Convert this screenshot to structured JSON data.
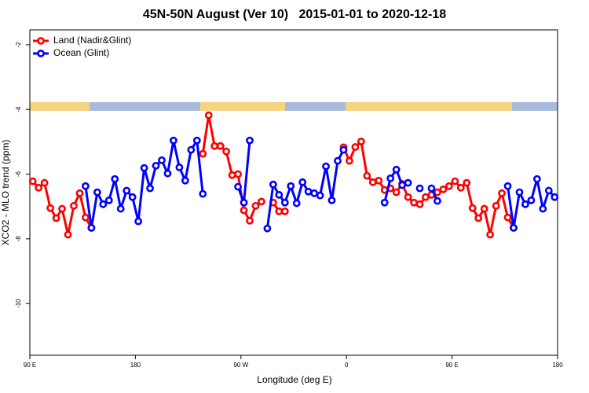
{
  "chart_data": {
    "type": "line",
    "title": "45N-50N August (Ver 10)   2015-01-01 to 2020-12-18",
    "x_label": "Longitude (deg E)",
    "y_label": "XCO2 - MLO trend (ppm)",
    "xlim": [
      90,
      540
    ],
    "ylim": [
      -11.6,
      -1.54
    ],
    "xticks": [
      {
        "value": 90,
        "label": "90 E"
      },
      180,
      {
        "value": 270,
        "label": "90 W"
      },
      {
        "value": 360,
        "label": "0"
      },
      {
        "value": 450,
        "label": "90 E"
      },
      {
        "value": 540,
        "label": "180"
      }
    ],
    "yticks": [
      -10,
      -8,
      -6,
      -4,
      -2
    ],
    "legend": "top-left",
    "x": [
      92.5,
      97.5,
      102.5,
      107.5,
      112.5,
      117.5,
      122.5,
      127.5,
      132.5,
      137.5,
      142.5,
      147.5,
      152.5,
      157.5,
      162.5,
      167.5,
      172.5,
      177.5,
      182.5,
      187.5,
      192.5,
      197.5,
      202.5,
      207.5,
      212.5,
      217.5,
      222.5,
      227.5,
      232.5,
      237.5,
      242.5,
      247.5,
      252.5,
      257.5,
      262.5,
      267.5,
      272.5,
      277.5,
      282.5,
      287.5,
      292.5,
      297.5,
      302.5,
      307.5,
      312.5,
      317.5,
      322.5,
      327.5,
      332.5,
      337.5,
      342.5,
      347.5,
      352.5,
      357.5,
      362.5,
      367.5,
      372.5,
      377.5,
      382.5,
      387.5,
      392.5,
      397.5,
      402.5,
      407.5,
      412.5,
      417.5,
      422.5,
      427.5,
      432.5,
      437.5,
      442.5,
      447.5,
      452.5,
      457.5,
      462.5,
      467.5,
      472.5,
      477.5,
      482.5,
      487.5,
      492.5,
      497.5,
      502.5,
      507.5,
      512.5,
      517.5,
      522.5,
      527.5,
      532.5,
      537.5
    ],
    "series": [
      {
        "name": "Land (Nadir&Glint)",
        "color": "#ff0000",
        "values": [
          -6.22,
          -6.42,
          -6.27,
          -7.05,
          -7.36,
          -7.07,
          -7.87,
          -6.98,
          -6.59,
          -7.34,
          -7.66,
          null,
          null,
          null,
          null,
          null,
          null,
          null,
          null,
          null,
          null,
          null,
          null,
          null,
          null,
          null,
          null,
          null,
          null,
          -5.37,
          -4.18,
          -5.13,
          -5.13,
          -5.3,
          -6.03,
          -6.0,
          -7.12,
          -7.44,
          -6.98,
          -6.85,
          null,
          -6.88,
          -7.15,
          -7.15,
          null,
          null,
          null,
          null,
          null,
          null,
          null,
          null,
          null,
          -5.17,
          -5.59,
          -5.16,
          -4.99,
          -6.05,
          -6.25,
          -6.2,
          -6.49,
          -6.44,
          -6.56,
          -6.3,
          -6.71,
          -6.88,
          -6.93,
          -6.71,
          -6.64,
          -6.56,
          -6.47,
          -6.37,
          -6.22,
          -6.42,
          -6.27,
          -7.05,
          -7.36,
          -7.07,
          -7.87,
          -6.98,
          -6.59,
          -7.34,
          -7.66,
          null,
          null,
          null,
          null,
          null,
          null,
          null
        ]
      },
      {
        "name": "Ocean (Glint)",
        "color": "#0000ff",
        "values": [
          null,
          null,
          null,
          null,
          null,
          null,
          null,
          null,
          null,
          -6.37,
          -7.66,
          -6.56,
          -6.93,
          -6.81,
          -6.15,
          -7.07,
          -6.51,
          -6.71,
          -7.46,
          -5.81,
          -6.44,
          -5.74,
          -5.57,
          -5.98,
          -4.96,
          -5.79,
          -6.2,
          -5.25,
          -4.96,
          -6.61,
          null,
          null,
          null,
          null,
          null,
          -6.39,
          -6.88,
          -4.96,
          null,
          null,
          -7.68,
          -6.32,
          -6.64,
          -6.88,
          -6.37,
          -6.9,
          -6.25,
          -6.54,
          -6.59,
          -6.66,
          -5.76,
          -6.81,
          -5.59,
          -5.25,
          null,
          null,
          null,
          null,
          null,
          null,
          -6.88,
          -6.13,
          -5.86,
          -6.34,
          -6.27,
          null,
          -6.44,
          null,
          -6.44,
          -6.83,
          null,
          null,
          null,
          null,
          null,
          null,
          null,
          null,
          null,
          null,
          null,
          -6.37,
          -7.66,
          -6.56,
          -6.93,
          -6.81,
          -6.15,
          -7.07,
          -6.51,
          -6.71
        ]
      }
    ]
  }
}
